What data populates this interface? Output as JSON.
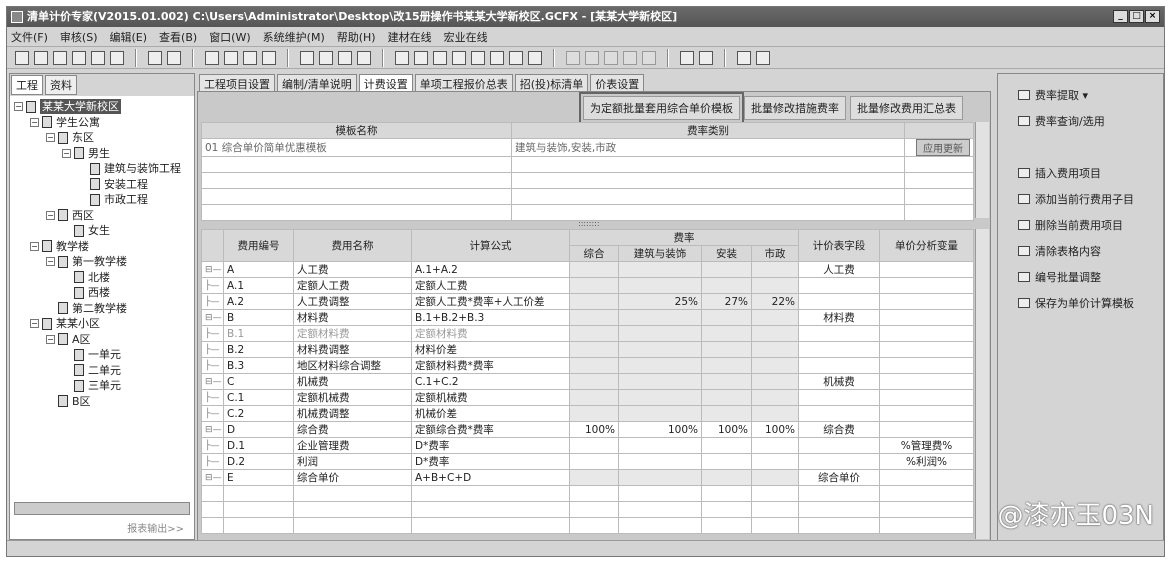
{
  "title": "清单计价专家(V2015.01.002) C:\\Users\\Administrator\\Desktop\\改15册操作书某某大学新校区.GCFX - [某某大学新校区]",
  "window_buttons": [
    "_",
    "□",
    "×"
  ],
  "menu": [
    "文件(F)",
    "审核(S)",
    "编辑(E)",
    "查看(B)",
    "窗口(W)",
    "系统维护(M)",
    "帮助(H)",
    "建材在线",
    "宏业在线"
  ],
  "left": {
    "tabs": [
      "工程",
      "资料"
    ],
    "footer": "报表输出>>",
    "tree": [
      {
        "label": "某某大学新校区",
        "level": 0,
        "exp": true,
        "selected": true
      },
      {
        "label": "学生公寓",
        "level": 1,
        "exp": true
      },
      {
        "label": "东区",
        "level": 2,
        "exp": true
      },
      {
        "label": "男生",
        "level": 3,
        "exp": true
      },
      {
        "label": "建筑与装饰工程",
        "level": 4,
        "exp": false
      },
      {
        "label": "安装工程",
        "level": 4,
        "exp": false
      },
      {
        "label": "市政工程",
        "level": 4,
        "exp": false
      },
      {
        "label": "西区",
        "level": 2,
        "exp": true
      },
      {
        "label": "女生",
        "level": 3,
        "exp": false
      },
      {
        "label": "教学楼",
        "level": 1,
        "exp": true
      },
      {
        "label": "第一教学楼",
        "level": 2,
        "exp": true
      },
      {
        "label": "北楼",
        "level": 3,
        "exp": false
      },
      {
        "label": "西楼",
        "level": 3,
        "exp": false
      },
      {
        "label": "第二教学楼",
        "level": 2,
        "exp": false
      },
      {
        "label": "某某小区",
        "level": 1,
        "exp": true
      },
      {
        "label": "A区",
        "level": 2,
        "exp": true
      },
      {
        "label": "一单元",
        "level": 3,
        "exp": false
      },
      {
        "label": "二单元",
        "level": 3,
        "exp": false
      },
      {
        "label": "三单元",
        "level": 3,
        "exp": false
      },
      {
        "label": "B区",
        "level": 2,
        "exp": false
      }
    ]
  },
  "tabs": [
    "工程项目设置",
    "编制/清单说明",
    "计费设置",
    "单项工程报价总表",
    "招(投)标清单",
    "价表设置"
  ],
  "active_tab": "计费设置",
  "buttons": [
    "为定额批量套用综合单价模板",
    "批量修改措施费率",
    "批量修改费用汇总表"
  ],
  "template_table": {
    "headers": [
      "模板名称",
      "费率类别",
      ""
    ],
    "rows": [
      {
        "name": "01 综合单价简单优惠模板",
        "category": "建筑与装饰,安装,市政",
        "action": "应用更新"
      }
    ]
  },
  "fee_table": {
    "headers": {
      "code": "费用编号",
      "name": "费用名称",
      "formula": "计算公式",
      "rate": "费率",
      "rate_cols": [
        "综合",
        "建筑与装饰",
        "安装",
        "市政"
      ],
      "field": "计价表字段",
      "var": "单价分析变量"
    },
    "rows": [
      {
        "code": "A",
        "name": "人工费",
        "formula": "A.1+A.2",
        "rates": [
          "",
          "",
          "",
          ""
        ],
        "field": "人工费",
        "var": "",
        "parent": true
      },
      {
        "code": "A.1",
        "name": "定额人工费",
        "formula": "定额人工费",
        "rates": [
          "",
          "",
          "",
          ""
        ],
        "field": "",
        "var": ""
      },
      {
        "code": "A.2",
        "name": "人工费调整",
        "formula": "定额人工费*费率+人工价差",
        "rates": [
          "",
          "25%",
          "27%",
          "22%"
        ],
        "field": "",
        "var": ""
      },
      {
        "code": "B",
        "name": "材料费",
        "formula": "B.1+B.2+B.3",
        "rates": [
          "",
          "",
          "",
          ""
        ],
        "field": "材料费",
        "var": "",
        "parent": true
      },
      {
        "code": "B.1",
        "name": "定额材料费",
        "formula": "定额材料费",
        "rates": [
          "",
          "",
          "",
          ""
        ],
        "field": "",
        "var": "",
        "dim": true
      },
      {
        "code": "B.2",
        "name": "材料费调整",
        "formula": "材料价差",
        "rates": [
          "",
          "",
          "",
          ""
        ],
        "field": "",
        "var": ""
      },
      {
        "code": "B.3",
        "name": "地区材料综合调整",
        "formula": "定额材料费*费率",
        "rates": [
          "",
          "",
          "",
          ""
        ],
        "field": "",
        "var": ""
      },
      {
        "code": "C",
        "name": "机械费",
        "formula": "C.1+C.2",
        "rates": [
          "",
          "",
          "",
          ""
        ],
        "field": "机械费",
        "var": "",
        "parent": true
      },
      {
        "code": "C.1",
        "name": "定额机械费",
        "formula": "定额机械费",
        "rates": [
          "",
          "",
          "",
          ""
        ],
        "field": "",
        "var": ""
      },
      {
        "code": "C.2",
        "name": "机械费调整",
        "formula": "机械价差",
        "rates": [
          "",
          "",
          "",
          ""
        ],
        "field": "",
        "var": ""
      },
      {
        "code": "D",
        "name": "综合费",
        "formula": "定额综合费*费率",
        "rates": [
          "100%",
          "100%",
          "100%",
          "100%"
        ],
        "field": "综合费",
        "var": "",
        "parent": true,
        "white": true
      },
      {
        "code": "D.1",
        "name": "企业管理费",
        "formula": "D*费率",
        "rates": [
          "",
          "",
          "",
          ""
        ],
        "field": "",
        "var": "%管理费%",
        "white": true
      },
      {
        "code": "D.2",
        "name": "利润",
        "formula": "D*费率",
        "rates": [
          "",
          "",
          "",
          ""
        ],
        "field": "",
        "var": "%利润%",
        "white": true
      },
      {
        "code": "E",
        "name": "综合单价",
        "formula": "A+B+C+D",
        "rates": [
          "",
          "",
          "",
          ""
        ],
        "field": "综合单价",
        "var": "",
        "parent": true
      }
    ]
  },
  "right_panel": [
    {
      "label": "费率提取 ▾",
      "icon": "folder-icon"
    },
    {
      "label": "费率查询/选用",
      "icon": "diamond-icon"
    },
    {
      "label": "",
      "icon": ""
    },
    {
      "label": "插入费用项目",
      "icon": "insert-row-icon"
    },
    {
      "label": "添加当前行费用子目",
      "icon": "add-child-icon"
    },
    {
      "label": "删除当前费用项目",
      "icon": "delete-row-icon"
    },
    {
      "label": "清除表格内容",
      "icon": "eraser-icon"
    },
    {
      "label": "编号批量调整",
      "icon": "numbering-icon"
    },
    {
      "label": "保存为单价计算模板",
      "icon": "save-template-icon"
    }
  ],
  "watermark": "@漆亦玉03N"
}
